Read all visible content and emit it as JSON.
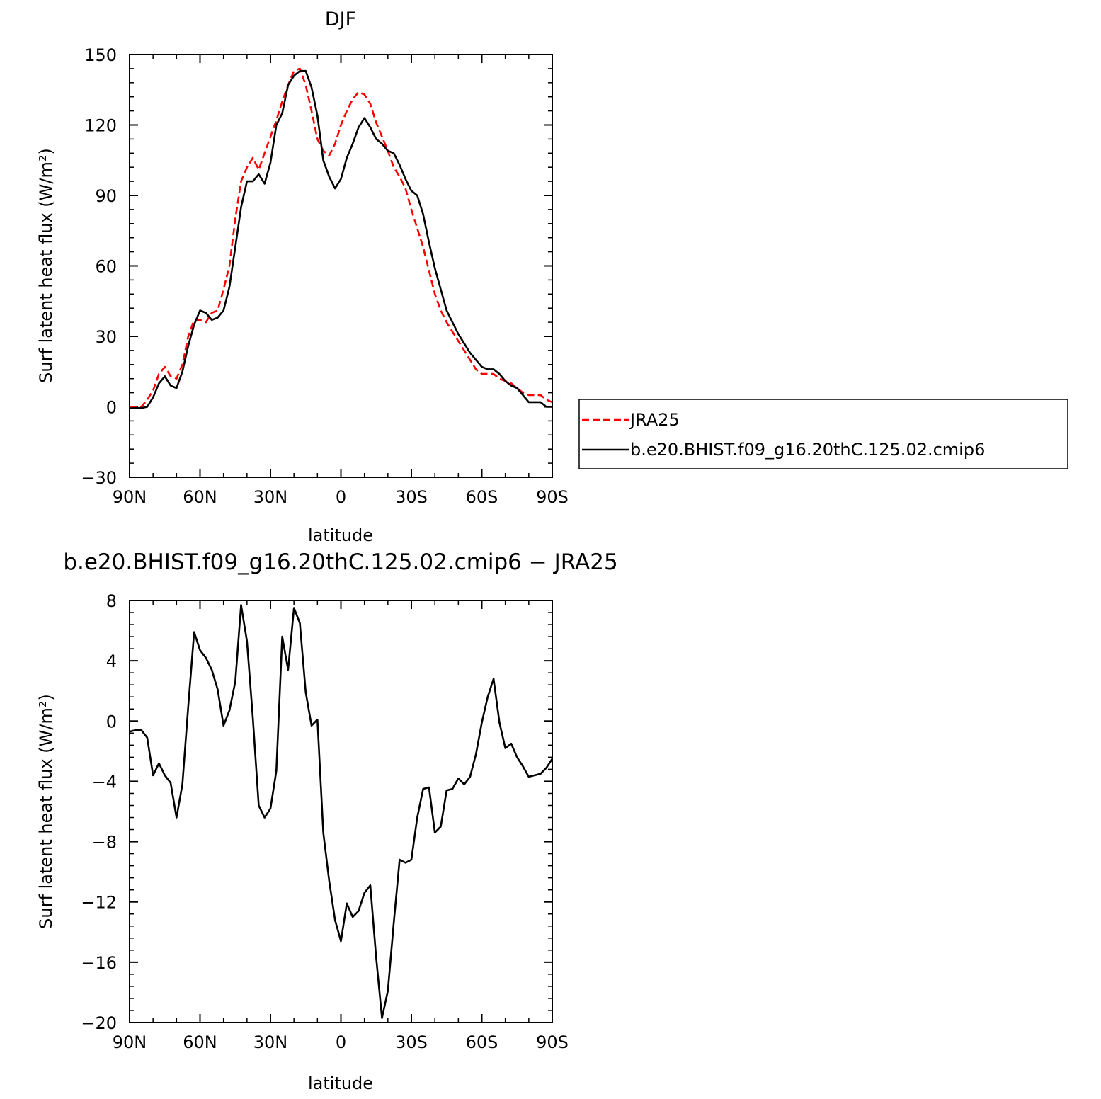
{
  "chart_data": [
    {
      "type": "line",
      "title": "DJF",
      "xlabel": "latitude",
      "ylabel": "Surf latent heat flux (W/m²)",
      "xlim": [
        90,
        -90
      ],
      "ylim": [
        -30,
        150
      ],
      "yticks": [
        -30,
        0,
        30,
        60,
        90,
        120,
        150
      ],
      "xticks": [
        90,
        60,
        30,
        0,
        -30,
        -60,
        -90
      ],
      "xticklabels": [
        "90N",
        "60N",
        "30N",
        "0",
        "30S",
        "60S",
        "90S"
      ],
      "legend_position": "right",
      "series": [
        {
          "name": "JRA25",
          "color": "#ff0000",
          "style": "dashed",
          "x": [
            90,
            87.5,
            85,
            82.5,
            80,
            77.5,
            75,
            72.5,
            70,
            67.5,
            65,
            62.5,
            60,
            57.5,
            55,
            52.5,
            50,
            47.5,
            45,
            42.5,
            40,
            37.5,
            35,
            32.5,
            30,
            27.5,
            25,
            22.5,
            20,
            17.5,
            15,
            12.5,
            10,
            7.5,
            5,
            2.5,
            0,
            -2.5,
            -5,
            -7.5,
            -10,
            -12.5,
            -15,
            -17.5,
            -20,
            -22.5,
            -25,
            -27.5,
            -30,
            -32.5,
            -35,
            -37.5,
            -40,
            -42.5,
            -45,
            -47.5,
            -50,
            -52.5,
            -55,
            -57.5,
            -60,
            -62.5,
            -65,
            -67.5,
            -70,
            -72.5,
            -75,
            -77.5,
            -80,
            -82.5,
            -85,
            -87.5,
            -90
          ],
          "y": [
            0,
            0,
            0,
            3,
            7,
            14,
            17,
            13,
            12,
            18,
            30,
            37,
            37,
            36,
            40,
            41,
            50,
            60,
            80,
            96,
            102,
            106,
            101,
            108,
            115,
            122,
            130,
            137,
            143,
            144,
            137,
            126,
            114,
            109,
            107,
            112,
            120,
            126,
            131,
            134,
            133,
            129,
            121,
            115,
            109,
            102,
            98,
            93,
            84,
            76,
            68,
            58,
            48,
            41,
            36,
            32,
            28,
            24,
            20,
            16,
            14,
            14,
            14,
            12,
            11,
            10,
            8,
            6,
            5,
            5,
            5,
            3,
            2
          ]
        },
        {
          "name": "b.e20.BHIST.f09_g16.20thC.125.02.cmip6",
          "color": "#000000",
          "style": "solid",
          "x": [
            90,
            87.5,
            85,
            82.5,
            80,
            77.5,
            75,
            72.5,
            70,
            67.5,
            65,
            62.5,
            60,
            57.5,
            55,
            52.5,
            50,
            47.5,
            45,
            42.5,
            40,
            37.5,
            35,
            32.5,
            30,
            27.5,
            25,
            22.5,
            20,
            17.5,
            15,
            12.5,
            10,
            7.5,
            5,
            2.5,
            0,
            -2.5,
            -5,
            -7.5,
            -10,
            -12.5,
            -15,
            -17.5,
            -20,
            -22.5,
            -25,
            -27.5,
            -30,
            -32.5,
            -35,
            -37.5,
            -40,
            -42.5,
            -45,
            -47.5,
            -50,
            -52.5,
            -55,
            -57.5,
            -60,
            -62.5,
            -65,
            -67.5,
            -70,
            -72.5,
            -75,
            -77.5,
            -80,
            -82.5,
            -85,
            -87.5,
            -90
          ],
          "y": [
            -0.7,
            -0.5,
            -0.5,
            0,
            4,
            10,
            13,
            9,
            8,
            15,
            26,
            35,
            41,
            40,
            37,
            38,
            41,
            51,
            68,
            85,
            96,
            96,
            99,
            95,
            104,
            120,
            125,
            137,
            141,
            143,
            143,
            136,
            124,
            105,
            98,
            93,
            97,
            106,
            112,
            119,
            123,
            119,
            114,
            112,
            109,
            108,
            103,
            97,
            92,
            90,
            82,
            70,
            59,
            50,
            41,
            36,
            31,
            27,
            23,
            20,
            17,
            16,
            16,
            14,
            11,
            9,
            8,
            5,
            2,
            2,
            2,
            0,
            0
          ]
        }
      ]
    },
    {
      "type": "line",
      "title": "b.e20.BHIST.f09_g16.20thC.125.02.cmip6 − JRA25",
      "xlabel": "latitude",
      "ylabel": "Surf latent heat flux (W/m²)",
      "xlim": [
        90,
        -90
      ],
      "ylim": [
        -20,
        8
      ],
      "yticks": [
        -20,
        -16,
        -12,
        -8,
        -4,
        0,
        4,
        8
      ],
      "xticks": [
        90,
        60,
        30,
        0,
        -30,
        -60,
        -90
      ],
      "xticklabels": [
        "90N",
        "60N",
        "30N",
        "0",
        "30S",
        "60S",
        "90S"
      ],
      "series": [
        {
          "color": "#000000",
          "style": "solid",
          "x": [
            90,
            87.5,
            85,
            82.5,
            80,
            77.5,
            75,
            72.5,
            70,
            67.5,
            65,
            62.5,
            60,
            57.5,
            55,
            52.5,
            50,
            47.5,
            45,
            42.5,
            40,
            37.5,
            35,
            32.5,
            30,
            27.5,
            25,
            22.5,
            20,
            17.5,
            15,
            12.5,
            10,
            7.5,
            5,
            2.5,
            0,
            -2.5,
            -5,
            -7.5,
            -10,
            -12.5,
            -15,
            -17.5,
            -20,
            -22.5,
            -25,
            -27.5,
            -30,
            -32.5,
            -35,
            -37.5,
            -40,
            -42.5,
            -45,
            -47.5,
            -50,
            -52.5,
            -55,
            -57.5,
            -60,
            -62.5,
            -65,
            -67.5,
            -70,
            -72.5,
            -75,
            -77.5,
            -80,
            -82.5,
            -85,
            -87.5,
            -90
          ],
          "y": [
            -0.7,
            -0.6,
            -0.6,
            -1.1,
            -3.6,
            -2.8,
            -3.6,
            -4.1,
            -6.4,
            -4.2,
            1.0,
            5.9,
            4.7,
            4.2,
            3.4,
            2.1,
            -0.3,
            0.7,
            2.6,
            7.7,
            5.3,
            0.2,
            -5.6,
            -6.4,
            -5.8,
            -3.3,
            5.6,
            3.4,
            7.5,
            6.5,
            1.9,
            -0.3,
            0.1,
            -7.4,
            -10.6,
            -13.2,
            -14.6,
            -12.1,
            -13.0,
            -12.6,
            -11.4,
            -10.9,
            -15.7,
            -19.7,
            -17.9,
            -13.4,
            -9.2,
            -9.4,
            -9.2,
            -6.4,
            -4.5,
            -4.4,
            -7.4,
            -7.0,
            -4.6,
            -4.5,
            -3.8,
            -4.2,
            -3.7,
            -2.2,
            -0.1,
            1.6,
            2.8,
            -0.1,
            -1.8,
            -1.5,
            -2.4,
            -3.0,
            -3.7,
            -3.6,
            -3.5,
            -3.1,
            -2.5
          ]
        }
      ]
    }
  ]
}
